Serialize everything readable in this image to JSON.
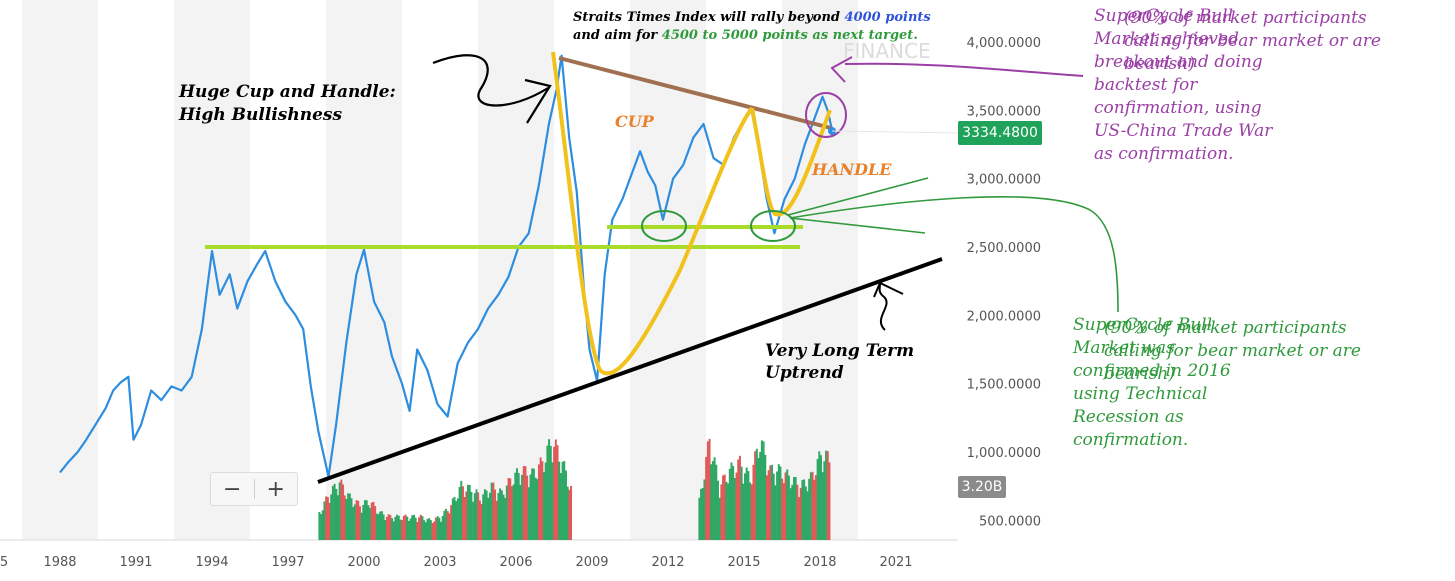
{
  "chart_data": {
    "type": "line",
    "title": "",
    "xlabel": "",
    "ylabel": "",
    "x_ticks": [
      "1988",
      "1991",
      "1994",
      "1997",
      "2000",
      "2003",
      "2006",
      "2009",
      "2012",
      "2015",
      "2018",
      "2021"
    ],
    "x_tick_left_partial": "5",
    "y_ticks": [
      "4,000.0000",
      "3,500.0000",
      "3,000.0000",
      "2,500.0000",
      "2,000.0000",
      "1,500.0000",
      "1,000.0000",
      "500.0000"
    ],
    "ylim": [
      450,
      4150
    ],
    "xlim": [
      1985.2,
      2023.5
    ],
    "grid": "alternating vertical bands",
    "series": [
      {
        "values": [
          [
            1988.0,
            850
          ],
          [
            1988.3,
            920
          ],
          [
            1988.7,
            1000
          ],
          [
            1989.0,
            1080
          ],
          [
            1989.4,
            1200
          ],
          [
            1989.8,
            1320
          ],
          [
            1990.1,
            1450
          ],
          [
            1990.4,
            1510
          ],
          [
            1990.7,
            1550
          ],
          [
            1990.9,
            1090
          ],
          [
            1991.2,
            1200
          ],
          [
            1991.6,
            1450
          ],
          [
            1992.0,
            1380
          ],
          [
            1992.4,
            1480
          ],
          [
            1992.8,
            1450
          ],
          [
            1993.2,
            1550
          ],
          [
            1993.6,
            1900
          ],
          [
            1994.0,
            2470
          ],
          [
            1994.3,
            2150
          ],
          [
            1994.7,
            2300
          ],
          [
            1995.0,
            2050
          ],
          [
            1995.4,
            2250
          ],
          [
            1995.8,
            2380
          ],
          [
            1996.1,
            2470
          ],
          [
            1996.5,
            2250
          ],
          [
            1996.9,
            2100
          ],
          [
            1997.3,
            2000
          ],
          [
            1997.6,
            1900
          ],
          [
            1997.9,
            1480
          ],
          [
            1998.2,
            1150
          ],
          [
            1998.6,
            820
          ],
          [
            1998.9,
            1200
          ],
          [
            1999.3,
            1800
          ],
          [
            1999.7,
            2300
          ],
          [
            2000.0,
            2480
          ],
          [
            2000.4,
            2100
          ],
          [
            2000.8,
            1950
          ],
          [
            2001.1,
            1700
          ],
          [
            2001.5,
            1500
          ],
          [
            2001.8,
            1300
          ],
          [
            2002.1,
            1750
          ],
          [
            2002.5,
            1600
          ],
          [
            2002.9,
            1350
          ],
          [
            2003.3,
            1260
          ],
          [
            2003.7,
            1650
          ],
          [
            2004.1,
            1800
          ],
          [
            2004.5,
            1900
          ],
          [
            2004.9,
            2050
          ],
          [
            2005.3,
            2150
          ],
          [
            2005.7,
            2280
          ],
          [
            2006.1,
            2500
          ],
          [
            2006.5,
            2600
          ],
          [
            2006.9,
            2950
          ],
          [
            2007.3,
            3400
          ],
          [
            2007.6,
            3650
          ],
          [
            2007.8,
            3900
          ],
          [
            2008.1,
            3300
          ],
          [
            2008.4,
            2900
          ],
          [
            2008.7,
            2150
          ],
          [
            2008.9,
            1750
          ],
          [
            2009.2,
            1520
          ],
          [
            2009.5,
            2300
          ],
          [
            2009.8,
            2700
          ],
          [
            2010.2,
            2850
          ],
          [
            2010.6,
            3050
          ],
          [
            2010.9,
            3200
          ],
          [
            2011.2,
            3050
          ],
          [
            2011.5,
            2950
          ],
          [
            2011.8,
            2700
          ],
          [
            2012.2,
            3000
          ],
          [
            2012.6,
            3100
          ],
          [
            2013.0,
            3300
          ],
          [
            2013.4,
            3400
          ],
          [
            2013.8,
            3150
          ],
          [
            2014.2,
            3100
          ],
          [
            2014.6,
            3300
          ],
          [
            2014.9,
            3400
          ],
          [
            2015.3,
            3500
          ],
          [
            2015.6,
            3200
          ],
          [
            2015.9,
            2850
          ],
          [
            2016.2,
            2600
          ],
          [
            2016.6,
            2850
          ],
          [
            2017.0,
            3000
          ],
          [
            2017.4,
            3250
          ],
          [
            2017.8,
            3450
          ],
          [
            2018.1,
            3600
          ],
          [
            2018.3,
            3500
          ],
          [
            2018.5,
            3334
          ]
        ]
      }
    ],
    "volume": {
      "label": "3.20B",
      "bars": [
        [
          1998.2,
          0.35
        ],
        [
          1998.6,
          0.6
        ],
        [
          1999.0,
          0.75
        ],
        [
          1999.4,
          0.55
        ],
        [
          1999.8,
          0.45
        ],
        [
          2000.2,
          0.5
        ],
        [
          2000.6,
          0.35
        ],
        [
          2001.0,
          0.3
        ],
        [
          2001.4,
          0.3
        ],
        [
          2001.8,
          0.3
        ],
        [
          2002.2,
          0.3
        ],
        [
          2002.6,
          0.25
        ],
        [
          2003.0,
          0.3
        ],
        [
          2003.4,
          0.45
        ],
        [
          2003.8,
          0.7
        ],
        [
          2004.2,
          0.65
        ],
        [
          2004.6,
          0.55
        ],
        [
          2005.0,
          0.7
        ],
        [
          2005.4,
          0.6
        ],
        [
          2005.8,
          0.8
        ],
        [
          2006.2,
          0.9
        ],
        [
          2006.6,
          0.85
        ],
        [
          2007.0,
          1.0
        ],
        [
          2007.4,
          1.3
        ],
        [
          2007.8,
          1.0
        ],
        [
          2008.2,
          0.6
        ],
        [
          2013.2,
          0.5
        ],
        [
          2013.6,
          1.3
        ],
        [
          2014.0,
          0.7
        ],
        [
          2014.4,
          0.9
        ],
        [
          2014.8,
          1.0
        ],
        [
          2015.2,
          0.8
        ],
        [
          2015.6,
          1.3
        ],
        [
          2016.0,
          0.9
        ],
        [
          2016.4,
          0.9
        ],
        [
          2016.8,
          0.8
        ],
        [
          2017.2,
          0.7
        ],
        [
          2017.6,
          0.8
        ],
        [
          2018.0,
          1.1
        ],
        [
          2018.4,
          1.05
        ]
      ]
    },
    "annotations": {
      "top_note_line1_a": "Straits Times Index will rally beyond ",
      "top_note_line1_b": "4000 points",
      "top_note_line2_a": "and aim for ",
      "top_note_line2_b": "4500 to 5000 points as next target.",
      "cup_handle_line1": "Huge Cup and Handle:",
      "cup_handle_line2": "High Bullishness",
      "cup": "CUP",
      "handle": "HANDLE",
      "uptrend_line1": "Very Long Term",
      "uptrend_line2": "Uptrend",
      "watermark": "FINANCE"
    },
    "current_price": "3334.4800",
    "colors": {
      "line": "#2d8de0",
      "price_badge": "#1fa25a",
      "resistance": "#a07050",
      "cup_curve": "#f2c21c",
      "support": "#a8dc28",
      "trendline": "#000000",
      "vol_up": "#2fa866",
      "vol_down": "#e05a5a",
      "note_purple": "#9b3fa6",
      "note_green": "#2f9a3c",
      "note_blue": "#2d54d8",
      "note_orange": "#e8822a"
    }
  },
  "zoom": {
    "minus": "−",
    "plus": "+"
  },
  "notes": {
    "purple_main": [
      "SuperCycle Bull",
      "Market achieved",
      "breakout and doing",
      "backtest for",
      "confirmation, using",
      "US-China Trade War",
      "as confirmation."
    ],
    "purple_sub": [
      "(90% of market participants",
      "calling for bear market or are",
      "bearish)"
    ],
    "green_main": [
      "SuperCycle Bull",
      "Market was",
      "confirmed in 2016",
      "using Technical",
      "Recession as",
      "confirmation."
    ],
    "green_sub": [
      "(90% of market participants",
      "calling for bear market or are",
      "bearish)"
    ]
  }
}
